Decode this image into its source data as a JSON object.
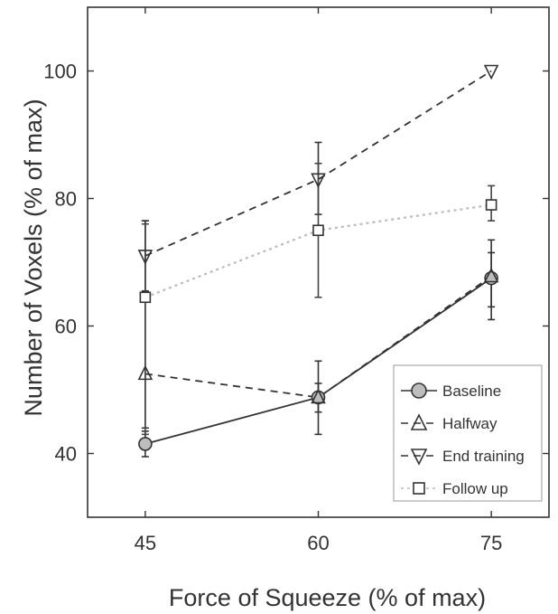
{
  "chart_data": {
    "type": "line",
    "title": "",
    "xlabel": "Force of Squeeze (% of max)",
    "ylabel": "Number of Voxels (% of max)",
    "x": [
      45,
      60,
      75
    ],
    "xlim": [
      40,
      80
    ],
    "ylim": [
      30,
      110
    ],
    "xticks": [
      45,
      60,
      75
    ],
    "yticks": [
      40,
      60,
      80,
      100
    ],
    "grid": false,
    "legend_position": "bottom-right",
    "series": [
      {
        "name": "Baseline",
        "marker": "circle",
        "line_style": "solid",
        "color": "#333333",
        "marker_fill": "#bdbdbd",
        "values": [
          41.5,
          48.8,
          67.5
        ],
        "err_low": [
          39.5,
          43,
          61
        ],
        "err_high": [
          43.5,
          54.5,
          73.5
        ]
      },
      {
        "name": "Halfway",
        "marker": "triangle-up",
        "line_style": "dashed",
        "color": "#333333",
        "marker_fill": "none",
        "values": [
          52.5,
          48.8,
          67.8
        ],
        "err_low": [
          44,
          46.5,
          63
        ],
        "err_high": [
          76.5,
          51,
          71.5
        ]
      },
      {
        "name": "End training",
        "marker": "triangle-down",
        "line_style": "dashed",
        "color": "#333333",
        "marker_fill": "none",
        "values": [
          71,
          83,
          100
        ],
        "err_low": [
          65.5,
          77.5,
          100
        ],
        "err_high": [
          76.5,
          88.8,
          100
        ]
      },
      {
        "name": "Follow up",
        "marker": "square",
        "line_style": "dotted",
        "color": "#bbbbbb",
        "marker_fill": "none",
        "values": [
          64.5,
          75,
          79
        ],
        "err_low": [
          43,
          64.5,
          76.5
        ],
        "err_high": [
          76,
          85.5,
          82
        ]
      }
    ]
  }
}
